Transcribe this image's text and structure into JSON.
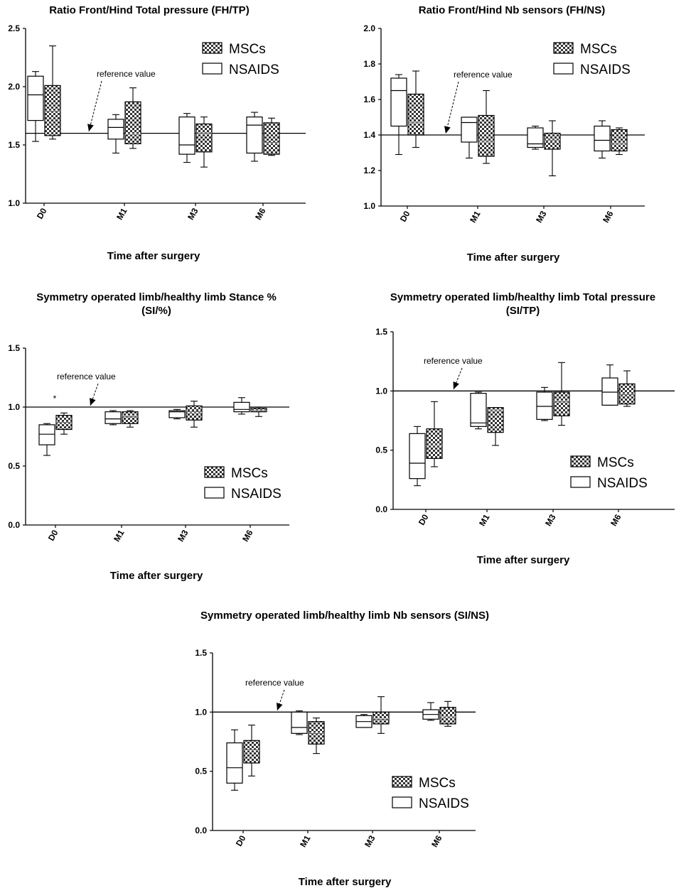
{
  "colors": {
    "ink": "#000000",
    "hatch_dark": "#333333",
    "hatch_light": "#ffffff"
  },
  "chart_data": [
    {
      "id": "fh_tp",
      "type": "boxplot",
      "title": "Ratio Front/Hind Total pressure (FH/TP)",
      "title_line2": "",
      "xlabel": "Time after surgery",
      "ylabel": "",
      "categories": [
        "D0",
        "M1",
        "M3",
        "M6"
      ],
      "ylim": [
        1.0,
        2.5
      ],
      "yticks": [
        "1.0",
        "1.5",
        "2.0",
        "2.5"
      ],
      "reference_value": 1.6,
      "reference_label": "reference value",
      "annotation": "",
      "legend": [
        "MSCs",
        "NSAIDS"
      ],
      "series": [
        {
          "name": "NSAIDS",
          "style": "open",
          "boxes": [
            {
              "min": 1.53,
              "q1": 1.71,
              "median": 1.93,
              "q3": 2.09,
              "max": 2.13
            },
            {
              "min": 1.43,
              "q1": 1.55,
              "median": 1.65,
              "q3": 1.72,
              "max": 1.76
            },
            {
              "min": 1.35,
              "q1": 1.42,
              "median": 1.5,
              "q3": 1.74,
              "max": 1.77
            },
            {
              "min": 1.36,
              "q1": 1.43,
              "median": 1.67,
              "q3": 1.74,
              "max": 1.78
            }
          ]
        },
        {
          "name": "MSCs",
          "style": "hatched",
          "boxes": [
            {
              "min": 1.55,
              "q1": 1.58,
              "median": 1.79,
              "q3": 2.01,
              "max": 2.35
            },
            {
              "min": 1.47,
              "q1": 1.51,
              "median": 1.59,
              "q3": 1.87,
              "max": 1.99
            },
            {
              "min": 1.31,
              "q1": 1.44,
              "median": 1.6,
              "q3": 1.68,
              "max": 1.74
            },
            {
              "min": 1.41,
              "q1": 1.42,
              "median": 1.52,
              "q3": 1.69,
              "max": 1.73
            }
          ]
        }
      ]
    },
    {
      "id": "fh_ns",
      "type": "boxplot",
      "title": "Ratio Front/Hind Nb sensors (FH/NS)",
      "title_line2": "",
      "xlabel": "Time after surgery",
      "ylabel": "",
      "categories": [
        "D0",
        "M1",
        "M3",
        "M6"
      ],
      "ylim": [
        1.0,
        2.0
      ],
      "yticks": [
        "1.0",
        "1.2",
        "1.4",
        "1.6",
        "1.8",
        "2.0"
      ],
      "reference_value": 1.4,
      "reference_label": "reference value",
      "annotation": "",
      "legend": [
        "MSCs",
        "NSAIDS"
      ],
      "series": [
        {
          "name": "NSAIDS",
          "style": "open",
          "boxes": [
            {
              "min": 1.29,
              "q1": 1.45,
              "median": 1.65,
              "q3": 1.72,
              "max": 1.74
            },
            {
              "min": 1.27,
              "q1": 1.36,
              "median": 1.47,
              "q3": 1.5,
              "max": 1.5
            },
            {
              "min": 1.32,
              "q1": 1.33,
              "median": 1.35,
              "q3": 1.44,
              "max": 1.45
            },
            {
              "min": 1.27,
              "q1": 1.31,
              "median": 1.37,
              "q3": 1.45,
              "max": 1.48
            }
          ]
        },
        {
          "name": "MSCs",
          "style": "hatched",
          "boxes": [
            {
              "min": 1.33,
              "q1": 1.4,
              "median": 1.47,
              "q3": 1.63,
              "max": 1.76
            },
            {
              "min": 1.24,
              "q1": 1.28,
              "median": 1.36,
              "q3": 1.51,
              "max": 1.65
            },
            {
              "min": 1.17,
              "q1": 1.32,
              "median": 1.37,
              "q3": 1.41,
              "max": 1.48
            },
            {
              "min": 1.29,
              "q1": 1.31,
              "median": 1.35,
              "q3": 1.43,
              "max": 1.44
            }
          ]
        }
      ]
    },
    {
      "id": "si_stance",
      "type": "boxplot",
      "title": "Symmetry operated limb/healthy limb Stance %",
      "title_line2": "(SI/%)",
      "xlabel": "Time after surgery",
      "ylabel": "",
      "categories": [
        "D0",
        "M1",
        "M3",
        "M6"
      ],
      "ylim": [
        0.0,
        1.5
      ],
      "yticks": [
        "0.0",
        "0.5",
        "1.0",
        "1.5"
      ],
      "reference_value": 1.0,
      "reference_label": "reference value",
      "annotation": "*",
      "legend": [
        "MSCs",
        "NSAIDS"
      ],
      "series": [
        {
          "name": "NSAIDS",
          "style": "open",
          "boxes": [
            {
              "min": 0.59,
              "q1": 0.68,
              "median": 0.77,
              "q3": 0.85,
              "max": 0.86
            },
            {
              "min": 0.85,
              "q1": 0.86,
              "median": 0.9,
              "q3": 0.96,
              "max": 0.97
            },
            {
              "min": 0.9,
              "q1": 0.91,
              "median": 0.96,
              "q3": 0.97,
              "max": 0.98
            },
            {
              "min": 0.94,
              "q1": 0.96,
              "median": 0.98,
              "q3": 1.04,
              "max": 1.08
            }
          ]
        },
        {
          "name": "MSCs",
          "style": "hatched",
          "boxes": [
            {
              "min": 0.77,
              "q1": 0.81,
              "median": 0.87,
              "q3": 0.93,
              "max": 0.95
            },
            {
              "min": 0.83,
              "q1": 0.86,
              "median": 0.92,
              "q3": 0.96,
              "max": 0.97
            },
            {
              "min": 0.83,
              "q1": 0.89,
              "median": 0.96,
              "q3": 1.01,
              "max": 1.05
            },
            {
              "min": 0.92,
              "q1": 0.96,
              "median": 0.97,
              "q3": 0.99,
              "max": 1.0
            }
          ]
        }
      ]
    },
    {
      "id": "si_tp",
      "type": "boxplot",
      "title": "Symmetry operated limb/healthy limb Total pressure",
      "title_line2": "(SI/TP)",
      "xlabel": "Time after surgery",
      "ylabel": "",
      "categories": [
        "D0",
        "M1",
        "M3",
        "M6"
      ],
      "ylim": [
        0.0,
        1.5
      ],
      "yticks": [
        "0.0",
        "0.5",
        "1.0",
        "1.5"
      ],
      "reference_value": 1.0,
      "reference_label": "reference value",
      "annotation": "",
      "legend": [
        "MSCs",
        "NSAIDS"
      ],
      "series": [
        {
          "name": "NSAIDS",
          "style": "open",
          "boxes": [
            {
              "min": 0.2,
              "q1": 0.26,
              "median": 0.39,
              "q3": 0.64,
              "max": 0.7
            },
            {
              "min": 0.68,
              "q1": 0.7,
              "median": 0.73,
              "q3": 0.98,
              "max": 0.99
            },
            {
              "min": 0.75,
              "q1": 0.76,
              "median": 0.87,
              "q3": 0.99,
              "max": 1.03
            },
            {
              "min": 0.88,
              "q1": 0.88,
              "median": 0.99,
              "q3": 1.11,
              "max": 1.22
            }
          ]
        },
        {
          "name": "MSCs",
          "style": "hatched",
          "boxes": [
            {
              "min": 0.36,
              "q1": 0.43,
              "median": 0.54,
              "q3": 0.68,
              "max": 0.91
            },
            {
              "min": 0.54,
              "q1": 0.65,
              "median": 0.84,
              "q3": 0.86,
              "max": 0.86
            },
            {
              "min": 0.71,
              "q1": 0.79,
              "median": 0.91,
              "q3": 0.99,
              "max": 1.24
            },
            {
              "min": 0.87,
              "q1": 0.89,
              "median": 0.97,
              "q3": 1.06,
              "max": 1.17
            }
          ]
        }
      ]
    },
    {
      "id": "si_ns",
      "type": "boxplot",
      "title": "Symmetry operated limb/healthy limb Nb sensors (SI/NS)",
      "title_line2": "",
      "xlabel": "Time after surgery",
      "ylabel": "",
      "categories": [
        "D0",
        "M1",
        "M3",
        "M6"
      ],
      "ylim": [
        0.0,
        1.5
      ],
      "yticks": [
        "0.0",
        "0.5",
        "1.0",
        "1.5"
      ],
      "reference_value": 1.0,
      "reference_label": "reference value",
      "annotation": "",
      "legend": [
        "MSCs",
        "NSAIDS"
      ],
      "series": [
        {
          "name": "NSAIDS",
          "style": "open",
          "boxes": [
            {
              "min": 0.34,
              "q1": 0.4,
              "median": 0.53,
              "q3": 0.74,
              "max": 0.85
            },
            {
              "min": 0.81,
              "q1": 0.82,
              "median": 0.87,
              "q3": 1.0,
              "max": 1.01
            },
            {
              "min": 0.87,
              "q1": 0.87,
              "median": 0.92,
              "q3": 0.97,
              "max": 0.98
            },
            {
              "min": 0.93,
              "q1": 0.94,
              "median": 0.98,
              "q3": 1.02,
              "max": 1.08
            }
          ]
        },
        {
          "name": "MSCs",
          "style": "hatched",
          "boxes": [
            {
              "min": 0.46,
              "q1": 0.57,
              "median": 0.68,
              "q3": 0.76,
              "max": 0.89
            },
            {
              "min": 0.65,
              "q1": 0.73,
              "median": 0.82,
              "q3": 0.92,
              "max": 0.95
            },
            {
              "min": 0.82,
              "q1": 0.9,
              "median": 0.94,
              "q3": 1.0,
              "max": 1.13
            },
            {
              "min": 0.88,
              "q1": 0.9,
              "median": 0.96,
              "q3": 1.04,
              "max": 1.09
            }
          ]
        }
      ]
    }
  ]
}
